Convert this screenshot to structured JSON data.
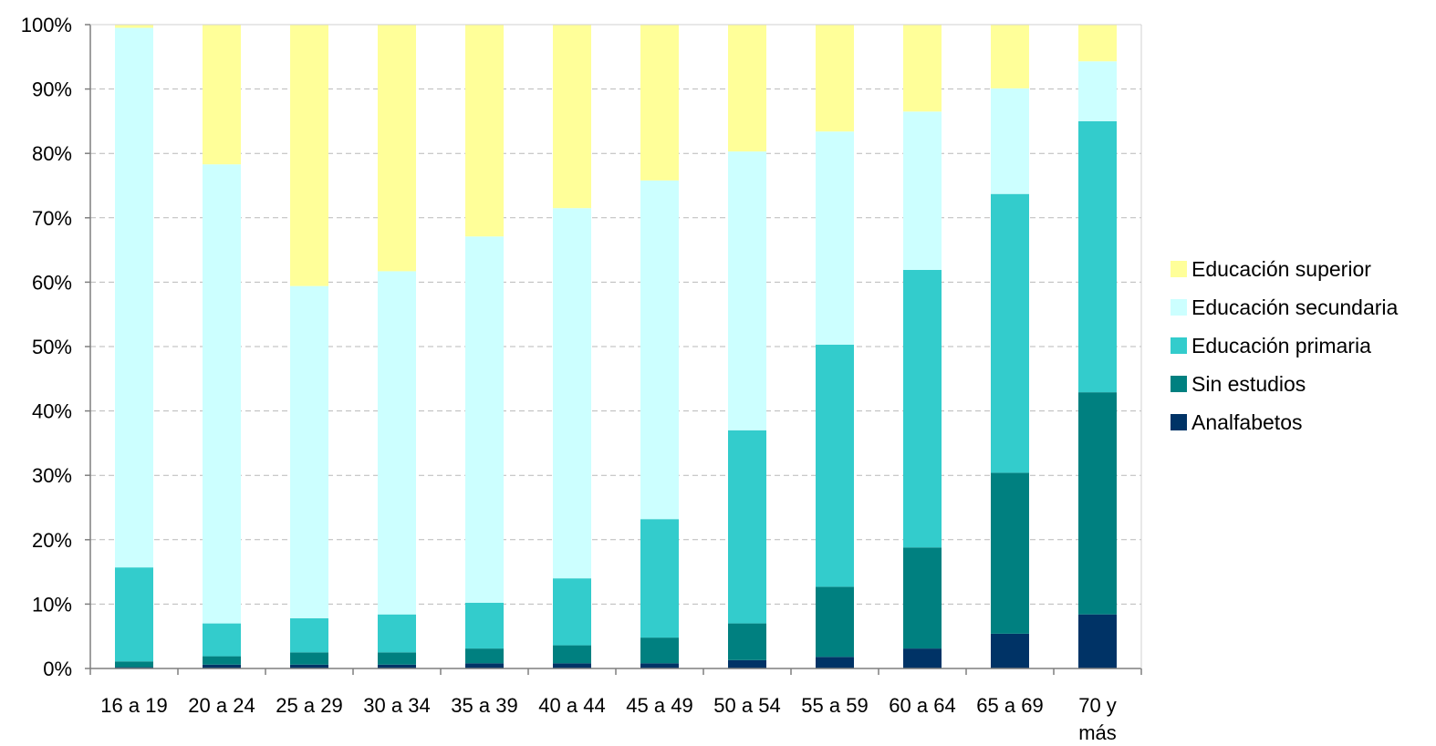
{
  "chart_data": {
    "type": "bar",
    "stacked": true,
    "normalized": true,
    "title": "",
    "xlabel": "",
    "ylabel": "",
    "ylim": [
      0,
      100
    ],
    "yticks": [
      "0%",
      "10%",
      "20%",
      "30%",
      "40%",
      "50%",
      "60%",
      "70%",
      "80%",
      "90%",
      "100%"
    ],
    "grid": "horizontal dashed",
    "legend_position": "right",
    "categories": [
      [
        "16 a 19"
      ],
      [
        "20 a 24"
      ],
      [
        "25 a 29"
      ],
      [
        "30 a 34"
      ],
      [
        "35 a 39"
      ],
      [
        "40 a 44"
      ],
      [
        "45 a 49"
      ],
      [
        "50 a 54"
      ],
      [
        "55 a 59"
      ],
      [
        "60 a 64"
      ],
      [
        "65 a 69"
      ],
      [
        "70 y",
        "más"
      ]
    ],
    "series": [
      {
        "name": "Analfabetos",
        "color": "#003366",
        "values": [
          0.2,
          0.6,
          0.6,
          0.6,
          0.8,
          0.8,
          0.8,
          1.3,
          1.8,
          3.1,
          5.4,
          8.4
        ]
      },
      {
        "name": "Sin estudios",
        "color": "#008080",
        "values": [
          0.9,
          1.3,
          1.9,
          1.9,
          2.3,
          2.8,
          4.0,
          5.7,
          10.9,
          15.7,
          25.0,
          34.5
        ]
      },
      {
        "name": "Educación primaria",
        "color": "#33CCCC",
        "values": [
          14.6,
          5.1,
          5.3,
          5.9,
          7.1,
          10.4,
          18.4,
          30.0,
          37.6,
          43.1,
          43.3,
          42.1
        ]
      },
      {
        "name": "Educación secundaria",
        "color": "#CCFFFF",
        "values": [
          83.8,
          71.3,
          51.6,
          53.3,
          56.9,
          57.5,
          52.6,
          43.3,
          33.1,
          24.6,
          16.4,
          9.3
        ]
      },
      {
        "name": "Educación superior",
        "color": "#FFFF99",
        "values": [
          0.5,
          21.7,
          40.6,
          38.3,
          32.9,
          28.5,
          24.2,
          19.7,
          16.6,
          13.5,
          9.9,
          5.7
        ]
      }
    ]
  }
}
